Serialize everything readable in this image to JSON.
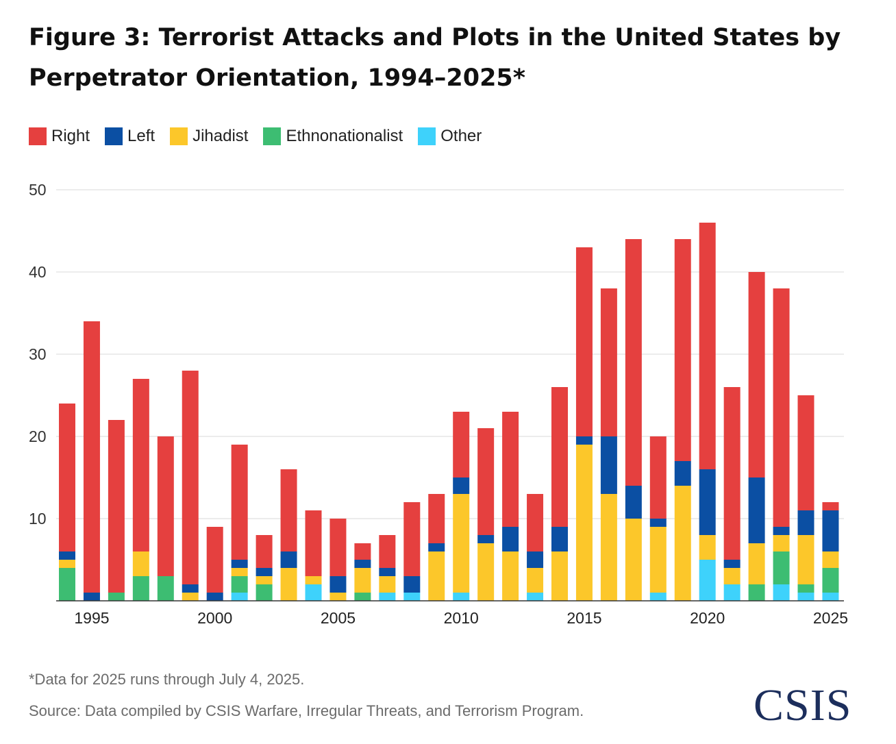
{
  "title": "Figure 3: Terrorist Attacks and Plots in the United States by Perpetrator Orientation, 1994–2025*",
  "footnote": "*Data for 2025 runs through July 4, 2025.",
  "source": "Source: Data compiled by CSIS Warfare, Irregular Threats, and Terrorism Program.",
  "logo_text": "CSIS",
  "colors": {
    "Right": "#e5403f",
    "Left": "#0b4fa3",
    "Jihadist": "#fcc72a",
    "Ethnonationalist": "#3dbd72",
    "Other": "#3ed2fb",
    "grid": "#e6e6e6",
    "axis": "#333333"
  },
  "chart_data": {
    "type": "bar",
    "stacked": true,
    "x": [
      1994,
      1995,
      1996,
      1997,
      1998,
      1999,
      2000,
      2001,
      2002,
      2003,
      2004,
      2005,
      2006,
      2007,
      2008,
      2009,
      2010,
      2011,
      2012,
      2013,
      2014,
      2015,
      2016,
      2017,
      2018,
      2019,
      2020,
      2021,
      2022,
      2023,
      2024,
      2025
    ],
    "x_tick_labels": [
      "1995",
      "2000",
      "2005",
      "2010",
      "2015",
      "2020",
      "2025"
    ],
    "y_ticks": [
      10,
      20,
      30,
      40,
      50
    ],
    "ylim": [
      0,
      50
    ],
    "grid": true,
    "legend_position": "top-left",
    "series": [
      {
        "name": "Other",
        "values": [
          0,
          0,
          0,
          0,
          0,
          0,
          0,
          1,
          0,
          0,
          2,
          0,
          0,
          1,
          1,
          0,
          1,
          0,
          0,
          1,
          0,
          0,
          0,
          0,
          1,
          0,
          5,
          2,
          0,
          2,
          1,
          1
        ]
      },
      {
        "name": "Ethnonationalist",
        "values": [
          4,
          0,
          1,
          3,
          3,
          0,
          0,
          2,
          2,
          0,
          0,
          0,
          1,
          0,
          0,
          0,
          0,
          0,
          0,
          0,
          0,
          0,
          0,
          0,
          0,
          0,
          0,
          0,
          2,
          4,
          1,
          3
        ]
      },
      {
        "name": "Jihadist",
        "values": [
          1,
          0,
          0,
          3,
          0,
          1,
          0,
          1,
          1,
          4,
          1,
          1,
          3,
          2,
          0,
          6,
          12,
          7,
          6,
          3,
          6,
          19,
          13,
          10,
          8,
          14,
          3,
          2,
          5,
          2,
          6,
          2
        ]
      },
      {
        "name": "Left",
        "values": [
          1,
          1,
          0,
          0,
          0,
          1,
          1,
          1,
          1,
          2,
          0,
          2,
          1,
          1,
          2,
          1,
          2,
          1,
          3,
          2,
          3,
          1,
          7,
          4,
          1,
          3,
          8,
          1,
          8,
          1,
          3,
          5
        ]
      },
      {
        "name": "Right",
        "values": [
          18,
          33,
          21,
          21,
          17,
          26,
          8,
          14,
          4,
          10,
          8,
          7,
          2,
          4,
          9,
          6,
          8,
          13,
          14,
          7,
          17,
          23,
          18,
          30,
          10,
          27,
          30,
          21,
          25,
          29,
          14,
          1
        ]
      }
    ]
  }
}
